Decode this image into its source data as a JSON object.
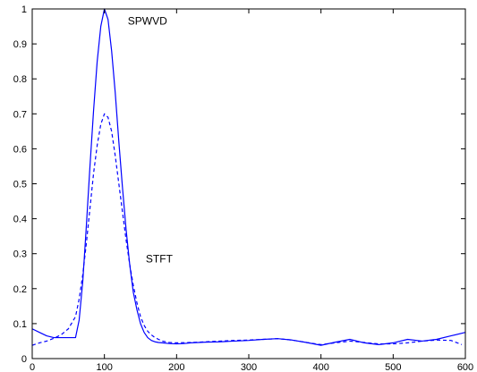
{
  "chart_data": {
    "type": "line",
    "title": "",
    "xlabel": "",
    "ylabel": "",
    "xlim": [
      0,
      600
    ],
    "ylim": [
      0,
      1
    ],
    "grid": false,
    "x_ticks": [
      0,
      100,
      200,
      300,
      400,
      500,
      600
    ],
    "x_tick_labels": [
      "0",
      "100",
      "200",
      "300",
      "400",
      "500",
      "600"
    ],
    "y_ticks": [
      0,
      0.1,
      0.2,
      0.3,
      0.4,
      0.5,
      0.6,
      0.7,
      0.8,
      0.9,
      1
    ],
    "y_tick_labels": [
      "0",
      "0.1",
      "0.2",
      "0.3",
      "0.4",
      "0.5",
      "0.6",
      "0.7",
      "0.8",
      "0.9",
      "1"
    ],
    "colors": {
      "line": "#0000ff",
      "axes": "#000000",
      "background": "#ffffff"
    },
    "series": [
      {
        "style": "solid",
        "x": [
          0,
          10,
          20,
          30,
          40,
          50,
          55,
          60,
          65,
          70,
          75,
          80,
          85,
          90,
          95,
          100,
          105,
          110,
          115,
          120,
          125,
          130,
          135,
          140,
          145,
          150,
          155,
          160,
          165,
          170,
          175,
          180,
          190,
          200,
          210,
          220,
          240,
          260,
          280,
          300,
          320,
          340,
          360,
          380,
          400,
          420,
          440,
          460,
          480,
          500,
          520,
          540,
          560,
          580,
          600
        ],
        "y": [
          0.085,
          0.075,
          0.065,
          0.06,
          0.06,
          0.06,
          0.06,
          0.06,
          0.11,
          0.22,
          0.38,
          0.55,
          0.71,
          0.85,
          0.95,
          1.0,
          0.97,
          0.88,
          0.76,
          0.62,
          0.49,
          0.37,
          0.27,
          0.19,
          0.14,
          0.1,
          0.075,
          0.06,
          0.052,
          0.048,
          0.046,
          0.045,
          0.043,
          0.042,
          0.043,
          0.045,
          0.047,
          0.048,
          0.05,
          0.052,
          0.055,
          0.057,
          0.053,
          0.046,
          0.038,
          0.047,
          0.055,
          0.045,
          0.04,
          0.045,
          0.055,
          0.05,
          0.055,
          0.065,
          0.075
        ]
      },
      {
        "style": "dashed",
        "x": [
          0,
          10,
          20,
          30,
          40,
          50,
          60,
          65,
          70,
          75,
          80,
          85,
          90,
          95,
          100,
          105,
          110,
          115,
          120,
          125,
          130,
          135,
          140,
          145,
          150,
          155,
          160,
          165,
          170,
          175,
          180,
          190,
          200,
          220,
          240,
          260,
          280,
          300,
          320,
          340,
          360,
          380,
          400,
          420,
          440,
          460,
          480,
          500,
          520,
          540,
          560,
          580,
          595
        ],
        "y": [
          0.038,
          0.045,
          0.05,
          0.058,
          0.068,
          0.085,
          0.12,
          0.17,
          0.24,
          0.33,
          0.43,
          0.53,
          0.61,
          0.67,
          0.7,
          0.69,
          0.65,
          0.58,
          0.5,
          0.42,
          0.34,
          0.27,
          0.21,
          0.16,
          0.12,
          0.095,
          0.078,
          0.068,
          0.06,
          0.055,
          0.05,
          0.046,
          0.045,
          0.046,
          0.048,
          0.05,
          0.052,
          0.053,
          0.055,
          0.057,
          0.053,
          0.046,
          0.04,
          0.045,
          0.05,
          0.046,
          0.042,
          0.042,
          0.045,
          0.05,
          0.053,
          0.052,
          0.04
        ]
      }
    ],
    "annotations": [
      {
        "text": "SPWVD",
        "x": 115,
        "y": 0.955
      },
      {
        "text": "STFT",
        "x": 140,
        "y": 0.275
      }
    ]
  }
}
